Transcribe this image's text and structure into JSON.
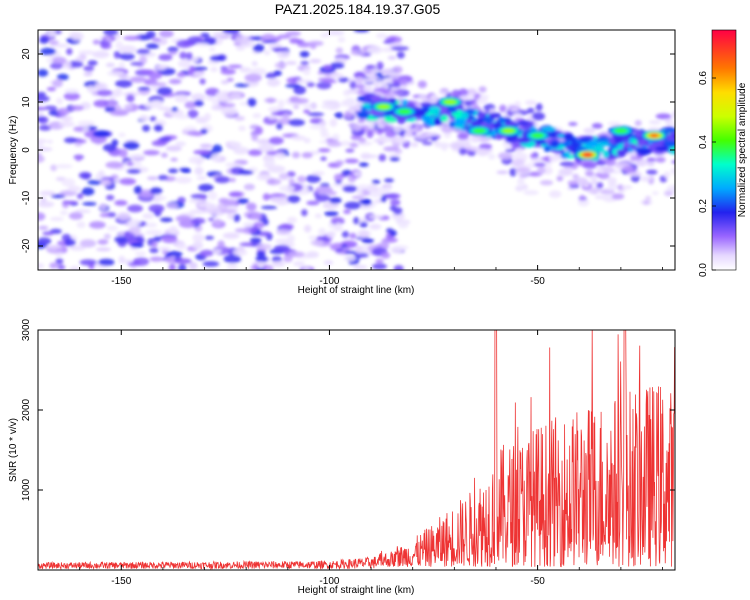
{
  "title": "PAZ1.2025.184.19.37.G05",
  "chart_data": [
    {
      "type": "heatmap",
      "xlabel": "Height of straight line (km)",
      "ylabel": "Frequency (Hz)",
      "xlim": [
        -170,
        -17
      ],
      "ylim": [
        -25,
        25
      ],
      "xticks": [
        -150,
        -100,
        -50
      ],
      "xtick_labels": [
        "-150",
        "-100",
        "-50"
      ],
      "yticks": [
        -20,
        -10,
        0,
        10,
        20
      ],
      "ytick_labels": [
        "-20",
        "-10",
        "0",
        "10",
        "20"
      ],
      "colorbar": {
        "label": "Normalized spectral amplitude",
        "range": [
          0,
          0.75
        ],
        "ticks": [
          0,
          0.2,
          0.4,
          0.6
        ],
        "tick_labels": [
          "0.0",
          "0.2",
          "0.4",
          "0.6"
        ]
      },
      "ridge": {
        "x": [
          -90,
          -80,
          -70,
          -60,
          -50,
          -40,
          -30,
          -20
        ],
        "y": [
          9,
          8,
          7,
          5,
          3,
          0,
          1,
          2
        ]
      },
      "hot_spots": [
        {
          "x": -87,
          "y": 9,
          "amp": 0.45
        },
        {
          "x": -82,
          "y": 8,
          "amp": 0.4
        },
        {
          "x": -71,
          "y": 10,
          "amp": 0.45
        },
        {
          "x": -64,
          "y": 4,
          "amp": 0.42
        },
        {
          "x": -57,
          "y": 4,
          "amp": 0.45
        },
        {
          "x": -50,
          "y": 3,
          "amp": 0.42
        },
        {
          "x": -38,
          "y": -1,
          "amp": 0.72
        },
        {
          "x": -30,
          "y": 4,
          "amp": 0.4
        },
        {
          "x": -22,
          "y": 3,
          "amp": 0.7
        }
      ]
    },
    {
      "type": "line",
      "xlabel": "Height of straight line (km)",
      "ylabel": "SNR (10 * v/v)",
      "xlim": [
        -170,
        -17
      ],
      "ylim": [
        0,
        3000
      ],
      "xticks": [
        -150,
        -100,
        -50
      ],
      "xtick_labels": [
        "-150",
        "-100",
        "-50"
      ],
      "yticks": [
        1000,
        2000,
        3000
      ],
      "ytick_labels": [
        "1000",
        "2000",
        "3000"
      ],
      "color": "#ee3333",
      "envelope": {
        "x": [
          -170,
          -100,
          -90,
          -85,
          -80,
          -75,
          -70,
          -65,
          -60,
          -55,
          -50,
          -45,
          -40,
          -35,
          -30,
          -25,
          -20,
          -17
        ],
        "y": [
          80,
          100,
          150,
          200,
          350,
          550,
          800,
          1000,
          1500,
          1600,
          1800,
          1900,
          2000,
          2100,
          2200,
          2300,
          2350,
          2200
        ]
      }
    }
  ]
}
